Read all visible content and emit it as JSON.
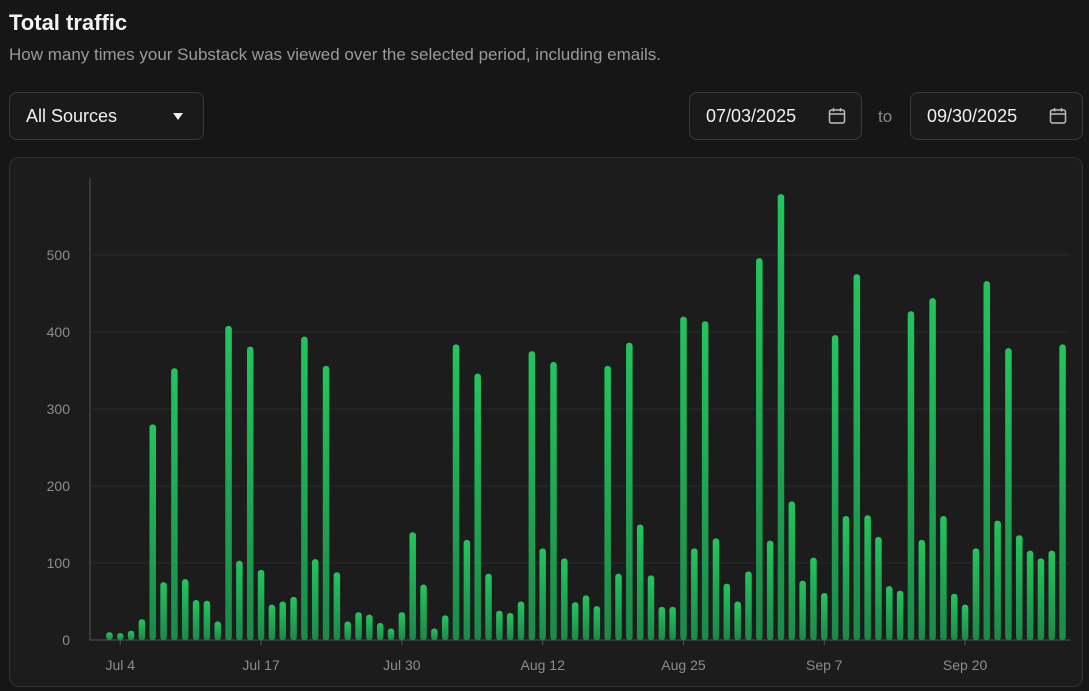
{
  "header": {
    "title": "Total traffic",
    "subtitle": "How many times your Substack was viewed over the selected period, including emails."
  },
  "filters": {
    "source_label": "All Sources",
    "start_date": "07/03/2025",
    "to_label": "to",
    "end_date": "09/30/2025"
  },
  "icons": {
    "dropdown": "caret-down-icon",
    "calendar": "calendar-icon"
  },
  "colors": {
    "bar": "#22c55e",
    "bar_dark": "#1b8a48",
    "background": "#161616",
    "panel": "#1c1c1c"
  },
  "chart_data": {
    "type": "bar",
    "title": "Total traffic",
    "xlabel": "",
    "ylabel": "",
    "ylim": [
      0,
      600
    ],
    "yticks": [
      0,
      100,
      200,
      300,
      400,
      500
    ],
    "x_tick_labels": [
      {
        "index": 1,
        "label": "Jul 4"
      },
      {
        "index": 14,
        "label": "Jul 17"
      },
      {
        "index": 27,
        "label": "Jul 30"
      },
      {
        "index": 40,
        "label": "Aug 12"
      },
      {
        "index": 53,
        "label": "Aug 25"
      },
      {
        "index": 66,
        "label": "Sep 7"
      },
      {
        "index": 79,
        "label": "Sep 20"
      }
    ],
    "values": [
      10,
      9,
      12,
      27,
      280,
      75,
      353,
      79,
      52,
      51,
      24,
      408,
      103,
      381,
      91,
      46,
      50,
      56,
      394,
      105,
      356,
      88,
      24,
      36,
      33,
      22,
      15,
      36,
      140,
      72,
      15,
      32,
      384,
      130,
      346,
      86,
      38,
      35,
      50,
      375,
      119,
      361,
      106,
      49,
      58,
      44,
      356,
      86,
      386,
      150,
      84,
      43,
      43,
      420,
      119,
      414,
      132,
      73,
      50,
      89,
      496,
      129,
      579,
      180,
      77,
      107,
      61,
      396,
      161,
      475,
      162,
      134,
      70,
      64,
      427,
      130,
      444,
      161,
      60,
      46,
      119,
      466,
      155,
      379,
      136,
      116,
      106,
      116,
      384
    ]
  }
}
